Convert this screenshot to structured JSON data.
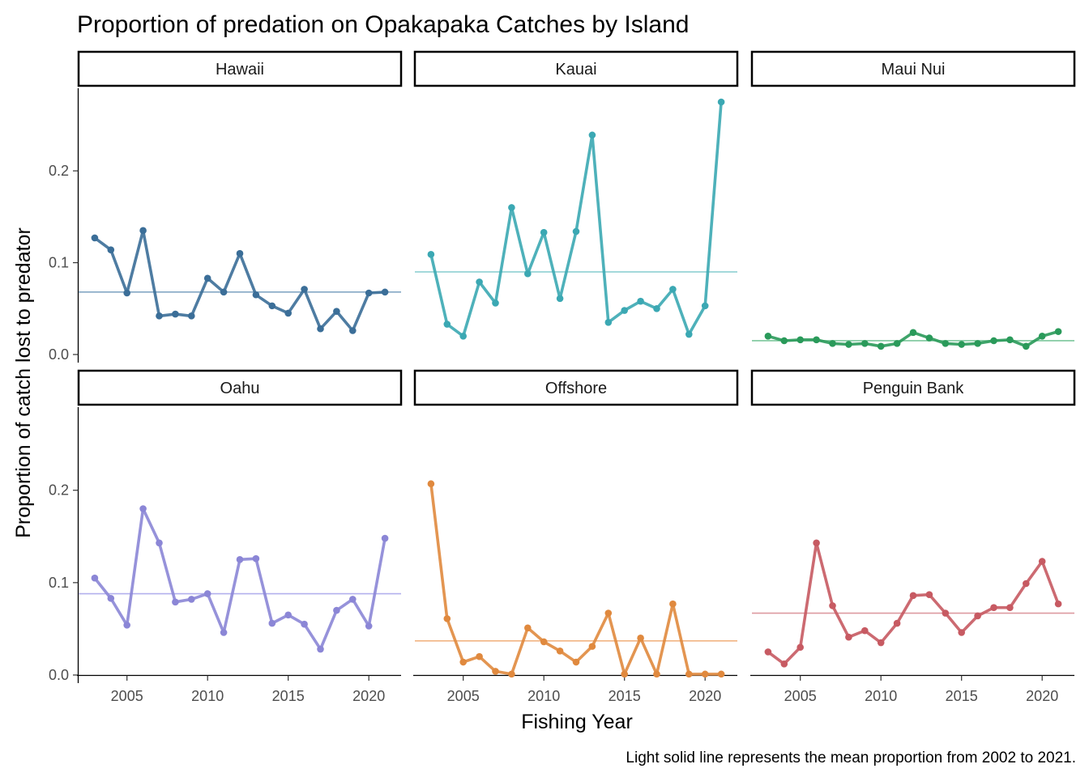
{
  "chart_data": {
    "type": "line",
    "title": "Proportion of predation on Opakapaka Catches by Island",
    "xlabel": "Fishing Year",
    "ylabel": "Proportion of catch lost to predator",
    "caption": "Light solid line represents the mean proportion from 2002 to 2021.",
    "xlim": [
      2002,
      2022
    ],
    "ylim": [
      0,
      0.29
    ],
    "x_ticks": [
      2005,
      2010,
      2015,
      2020
    ],
    "x_tick_labels": [
      "2005",
      "2010",
      "2015",
      "2020"
    ],
    "y_ticks": [
      0,
      0.1,
      0.2
    ],
    "y_tick_labels": [
      "0.0",
      "0.1",
      "0.2"
    ],
    "grid": false,
    "legend": "none",
    "x": [
      2003,
      2004,
      2005,
      2006,
      2007,
      2008,
      2009,
      2010,
      2011,
      2012,
      2013,
      2014,
      2015,
      2016,
      2017,
      2018,
      2019,
      2020,
      2021
    ],
    "panels": [
      {
        "name": "Hawaii",
        "color": "#3b6e98",
        "mean_color": "#85a8c4",
        "mean": 0.068,
        "values": [
          0.127,
          0.114,
          0.067,
          0.135,
          0.042,
          0.044,
          0.042,
          0.083,
          0.068,
          0.11,
          0.065,
          0.053,
          0.045,
          0.071,
          0.028,
          0.047,
          0.026,
          0.067,
          0.068
        ]
      },
      {
        "name": "Kauai",
        "color": "#3ba8b3",
        "mean_color": "#8fd1d2",
        "mean": 0.09,
        "values": [
          0.109,
          0.033,
          0.02,
          0.079,
          0.056,
          0.16,
          0.088,
          0.133,
          0.061,
          0.134,
          0.239,
          0.035,
          0.048,
          0.058,
          0.05,
          0.071,
          0.022,
          0.053,
          0.275
        ]
      },
      {
        "name": "Maui Nui",
        "color": "#2a9a5a",
        "mean_color": "#7cc79b",
        "mean": 0.015,
        "values": [
          0.02,
          0.015,
          0.016,
          0.016,
          0.012,
          0.011,
          0.012,
          0.009,
          0.012,
          0.024,
          0.018,
          0.012,
          0.011,
          0.012,
          0.015,
          0.016,
          0.009,
          0.02,
          0.025
        ]
      },
      {
        "name": "Oahu",
        "color": "#8b86d6",
        "mean_color": "#b3b0ee",
        "mean": 0.088,
        "values": [
          0.105,
          0.083,
          0.054,
          0.18,
          0.143,
          0.079,
          0.082,
          0.088,
          0.046,
          0.125,
          0.126,
          0.056,
          0.065,
          0.055,
          0.028,
          0.07,
          0.082,
          0.053,
          0.148
        ]
      },
      {
        "name": "Offshore",
        "color": "#e0893e",
        "mean_color": "#f2b583",
        "mean": 0.037,
        "values": [
          0.207,
          0.061,
          0.014,
          0.02,
          0.004,
          0.001,
          0.051,
          0.036,
          0.026,
          0.014,
          0.031,
          0.067,
          0.001,
          0.04,
          0.001,
          0.077,
          0.001,
          0.001,
          0.001
        ]
      },
      {
        "name": "Penguin Bank",
        "color": "#c75a62",
        "mean_color": "#de9aa0",
        "mean": 0.067,
        "values": [
          0.025,
          0.012,
          0.03,
          0.143,
          0.075,
          0.041,
          0.048,
          0.035,
          0.056,
          0.086,
          0.087,
          0.067,
          0.046,
          0.064,
          0.073,
          0.073,
          0.099,
          0.123,
          0.077
        ]
      }
    ]
  }
}
